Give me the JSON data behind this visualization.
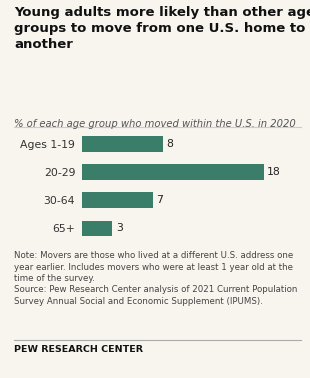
{
  "title": "Young adults more likely than other age\ngroups to move from one U.S. home to\nanother",
  "subtitle": "% of each age group who moved within the U.S. in 2020",
  "categories": [
    "Ages 1-19",
    "20-29",
    "30-64",
    "65+"
  ],
  "values": [
    8,
    18,
    7,
    3
  ],
  "bar_color": "#3a7d68",
  "xlim": [
    0,
    20
  ],
  "note1": "Note: Movers are those who lived at a different U.S. address one\nyear earlier. Includes movers who were at least 1 year old at the\ntime of the survey.",
  "note2": "Source: Pew Research Center analysis of 2021 Current Population\nSurvey Annual Social and Economic Supplement (IPUMS).",
  "source_label": "PEW RESEARCH CENTER",
  "background_color": "#f8f5ef",
  "title_fontsize": 9.5,
  "subtitle_fontsize": 7.2,
  "label_fontsize": 7.8,
  "note_fontsize": 6.2,
  "value_fontsize": 7.8
}
